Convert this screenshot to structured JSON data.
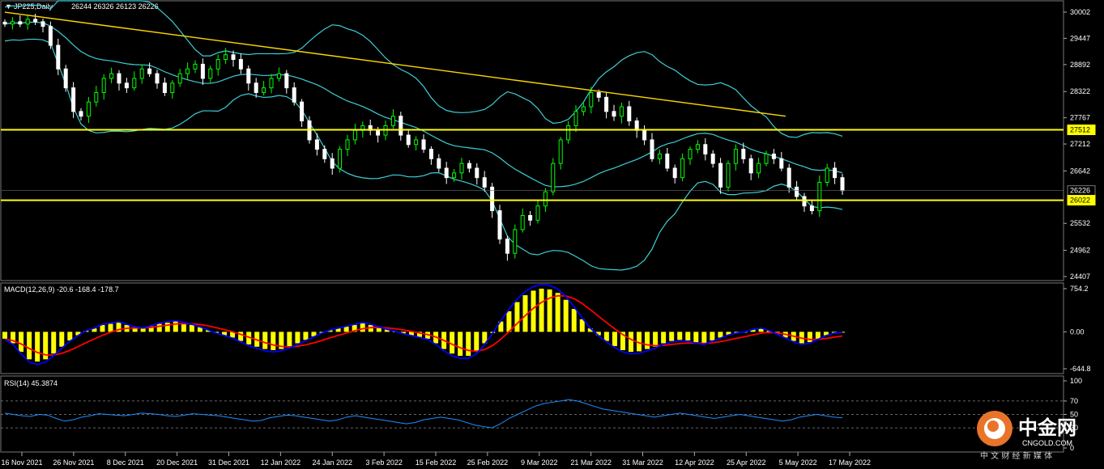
{
  "chart_data": [
    {
      "type": "candlestick",
      "title": "JP225,Daily",
      "ohlc_header": "26244 26326 26123 26226",
      "y_ticks": [
        "30002",
        "29447",
        "28892",
        "28322",
        "27767",
        "27212",
        "26642",
        "26226",
        "26022",
        "25532",
        "24962",
        "24407"
      ],
      "price_labels": [
        {
          "value": "27512"
        },
        {
          "value": "26226"
        },
        {
          "value": "26022"
        }
      ],
      "x_ticks": [
        "16 Nov 2021",
        "26 Nov 2021",
        "8 Dec 2021",
        "20 Dec 2021",
        "31 Dec 2021",
        "12 Jan 2022",
        "24 Jan 2022",
        "3 Feb 2022",
        "15 Feb 2022",
        "25 Feb 2022",
        "9 Mar 2022",
        "21 Mar 2022",
        "31 Mar 2022",
        "12 Apr 2022",
        "25 Apr 2022",
        "5 May 2022",
        "17 May 2022"
      ],
      "horizontal_levels": [
        27512,
        26022
      ],
      "trendline": [
        {
          "x": "16 Nov 2021",
          "y": 30000
        },
        {
          "x": "10 May 2022",
          "y": 27800
        }
      ],
      "close_approx": [
        29750,
        29800,
        29750,
        29850,
        29800,
        29700,
        29300,
        28800,
        28400,
        27900,
        27800,
        28100,
        28300,
        28600,
        28700,
        28500,
        28400,
        28600,
        28800,
        28700,
        28500,
        28300,
        28500,
        28700,
        28800,
        28900,
        28600,
        28800,
        29000,
        29100,
        29000,
        28800,
        28500,
        28300,
        28400,
        28600,
        28700,
        28400,
        28100,
        27700,
        27300,
        27100,
        26900,
        26700,
        27100,
        27300,
        27500,
        27600,
        27500,
        27400,
        27600,
        27800,
        27400,
        27200,
        27300,
        27100,
        26900,
        26700,
        26500,
        26600,
        26800,
        26700,
        26500,
        26300,
        25800,
        25200,
        24900,
        25400,
        25700,
        25600,
        25900,
        26200,
        26800,
        27300,
        27600,
        27900,
        28000,
        28300,
        28200,
        27900,
        27800,
        28000,
        27700,
        27500,
        27300,
        26900,
        27000,
        26700,
        26500,
        26900,
        27100,
        27200,
        27000,
        26800,
        26300,
        26800,
        27100,
        26900,
        26600,
        26800,
        27000,
        26900,
        26700,
        26300,
        26100,
        25900,
        25800,
        26400,
        26700,
        26500,
        26226
      ],
      "indicators": [
        "Bollinger Bands"
      ]
    },
    {
      "type": "macd",
      "title": "MACD(12,26,9) -20.6 -168.4 -178.7",
      "y_ticks": [
        "754.2",
        "0.00",
        "-644.8"
      ],
      "histogram_approx": [
        -120,
        -200,
        -350,
        -480,
        -520,
        -480,
        -380,
        -260,
        -150,
        -60,
        20,
        60,
        120,
        140,
        160,
        120,
        80,
        60,
        100,
        140,
        160,
        180,
        150,
        120,
        80,
        30,
        -20,
        -60,
        -100,
        -160,
        -220,
        -260,
        -300,
        -320,
        -300,
        -260,
        -200,
        -140,
        -80,
        -20,
        30,
        60,
        90,
        120,
        150,
        120,
        80,
        40,
        10,
        -30,
        -60,
        -90,
        -120,
        -200,
        -300,
        -380,
        -420,
        -420,
        -350,
        -200,
        -20,
        180,
        360,
        520,
        640,
        720,
        754,
        740,
        680,
        560,
        400,
        220,
        60,
        -60,
        -160,
        -250,
        -320,
        -350,
        -340,
        -300,
        -260,
        -200,
        -160,
        -140,
        -150,
        -180,
        -200,
        -150,
        -100,
        -50,
        -20,
        0,
        40,
        60,
        20,
        -40,
        -100,
        -160,
        -200,
        -180,
        -120,
        -60,
        -20,
        -10
      ]
    },
    {
      "type": "line",
      "title": "RSI(14) 45.3874",
      "y_ticks": [
        "100",
        "70",
        "50",
        "30",
        "0"
      ],
      "levels": [
        70,
        50,
        30
      ],
      "values_approx": [
        52,
        50,
        48,
        47,
        50,
        49,
        44,
        40,
        42,
        46,
        48,
        51,
        50,
        49,
        48,
        50,
        52,
        51,
        50,
        48,
        47,
        49,
        51,
        50,
        49,
        48,
        46,
        44,
        42,
        40,
        41,
        45,
        47,
        49,
        48,
        46,
        44,
        42,
        40,
        42,
        46,
        48,
        46,
        44,
        42,
        40,
        38,
        36,
        38,
        42,
        44,
        46,
        44,
        42,
        38,
        34,
        32,
        30,
        36,
        44,
        50,
        56,
        62,
        66,
        68,
        70,
        72,
        70,
        66,
        62,
        58,
        56,
        54,
        52,
        50,
        48,
        46,
        48,
        50,
        52,
        50,
        48,
        46,
        44,
        46,
        48,
        50,
        48,
        46,
        44,
        42,
        40,
        42,
        46,
        48,
        50,
        48,
        46,
        45
      ]
    }
  ],
  "colors": {
    "background": "#000000",
    "up_candle": "#00ff00",
    "down_candle": "#ffffff",
    "bollinger": "#3ccfd8",
    "levels": "#ffff00",
    "trendline": "#ffd700",
    "macd_hist": "#ffff00",
    "macd_line": "#0000ff",
    "signal_line": "#ff0000",
    "rsi_line": "#1e90ff"
  },
  "watermark": {
    "name": "中金网",
    "domain": "CNGOLD.COM",
    "tagline": "中 文 财 经 新 媒 体"
  }
}
